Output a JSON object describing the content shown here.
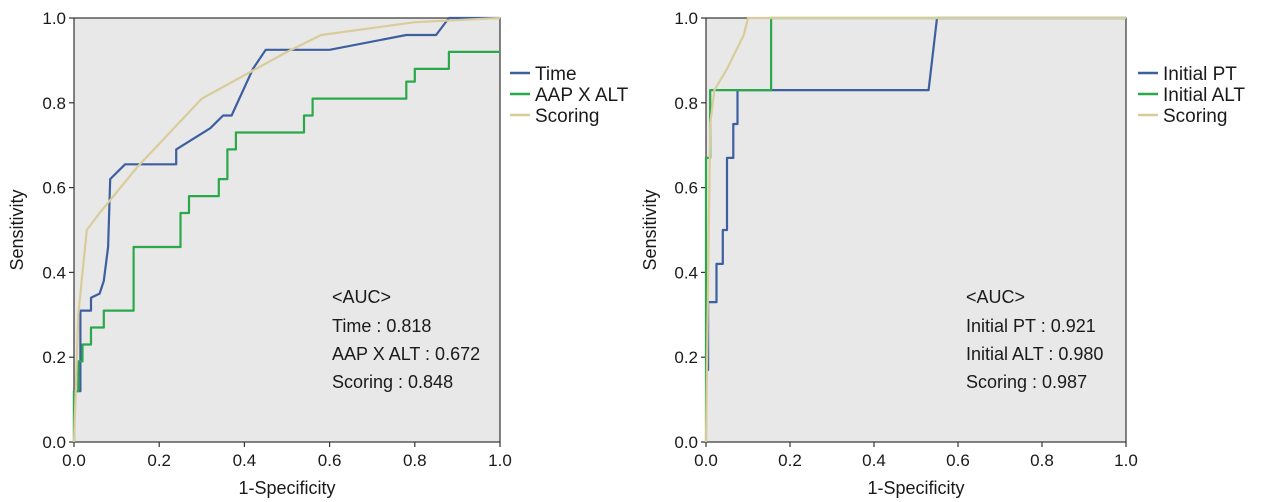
{
  "chart_data": [
    {
      "type": "line",
      "title": "",
      "xlabel": "1-Specificity",
      "ylabel": "Sensitivity",
      "xlim": [
        0,
        1
      ],
      "ylim": [
        0,
        1
      ],
      "xticks": [
        "0.0",
        "0.2",
        "0.4",
        "0.6",
        "0.8",
        "1.0"
      ],
      "yticks": [
        "0.0",
        "0.2",
        "0.4",
        "0.6",
        "0.8",
        "1.0"
      ],
      "grid": false,
      "legend_position": "right-top",
      "series": [
        {
          "name": "Time",
          "color": "#3d5fa0",
          "x": [
            0,
            0,
            0.015,
            0.015,
            0.04,
            0.04,
            0.06,
            0.07,
            0.08,
            0.085,
            0.12,
            0.24,
            0.24,
            0.32,
            0.35,
            0.37,
            0.42,
            0.45,
            0.6,
            0.78,
            0.85,
            0.88,
            1.0
          ],
          "y": [
            0,
            0.12,
            0.12,
            0.31,
            0.31,
            0.34,
            0.35,
            0.38,
            0.46,
            0.62,
            0.655,
            0.655,
            0.69,
            0.74,
            0.77,
            0.77,
            0.88,
            0.925,
            0.925,
            0.96,
            0.96,
            1.0,
            1.0
          ]
        },
        {
          "name": "AAP X ALT",
          "color": "#2aa84a",
          "x": [
            0,
            0,
            0.01,
            0.01,
            0.02,
            0.02,
            0.04,
            0.04,
            0.07,
            0.07,
            0.14,
            0.14,
            0.25,
            0.25,
            0.27,
            0.27,
            0.34,
            0.34,
            0.36,
            0.36,
            0.38,
            0.38,
            0.54,
            0.54,
            0.56,
            0.56,
            0.78,
            0.78,
            0.8,
            0.8,
            0.88,
            0.88,
            0.94,
            0.94,
            1.0
          ],
          "y": [
            0,
            0.12,
            0.12,
            0.19,
            0.19,
            0.23,
            0.23,
            0.27,
            0.27,
            0.31,
            0.31,
            0.46,
            0.46,
            0.54,
            0.54,
            0.58,
            0.58,
            0.62,
            0.62,
            0.69,
            0.69,
            0.73,
            0.73,
            0.77,
            0.77,
            0.81,
            0.81,
            0.85,
            0.85,
            0.88,
            0.88,
            0.92,
            0.92,
            0.92,
            0.92
          ]
        },
        {
          "name": "Scoring",
          "color": "#d9cc9a",
          "x": [
            0,
            0.01,
            0.02,
            0.03,
            0.06,
            0.15,
            0.3,
            0.5,
            0.58,
            0.8,
            1.0
          ],
          "y": [
            0,
            0.3,
            0.4,
            0.5,
            0.54,
            0.65,
            0.81,
            0.92,
            0.96,
            0.99,
            1.0
          ]
        }
      ],
      "annotation": {
        "heading": "<AUC>",
        "lines": [
          "Time : 0.818",
          "AAP X ALT : 0.672",
          "Scoring : 0.848"
        ]
      }
    },
    {
      "type": "line",
      "title": "",
      "xlabel": "1-Specificity",
      "ylabel": "Sensitivity",
      "xlim": [
        0,
        1
      ],
      "ylim": [
        0,
        1
      ],
      "xticks": [
        "0.0",
        "0.2",
        "0.4",
        "0.6",
        "0.8",
        "1.0"
      ],
      "yticks": [
        "0.0",
        "0.2",
        "0.4",
        "0.6",
        "0.8",
        "1.0"
      ],
      "grid": false,
      "legend_position": "right-top",
      "series": [
        {
          "name": "Initial PT",
          "color": "#3d5fa0",
          "x": [
            0,
            0.005,
            0.005,
            0.025,
            0.025,
            0.04,
            0.04,
            0.05,
            0.05,
            0.065,
            0.065,
            0.075,
            0.075,
            0.53,
            0.55,
            0.55,
            1.0
          ],
          "y": [
            0.17,
            0.17,
            0.33,
            0.33,
            0.42,
            0.42,
            0.5,
            0.5,
            0.67,
            0.67,
            0.75,
            0.75,
            0.83,
            0.83,
            1.0,
            1.0,
            1.0
          ]
        },
        {
          "name": "Initial ALT",
          "color": "#2aa84a",
          "x": [
            0,
            0,
            0.01,
            0.01,
            0.155,
            0.155,
            1.0
          ],
          "y": [
            0,
            0.67,
            0.67,
            0.83,
            0.83,
            1.0,
            1.0
          ]
        },
        {
          "name": "Scoring",
          "color": "#d9cc9a",
          "x": [
            0,
            0.01,
            0.02,
            0.05,
            0.09,
            0.1,
            1.0
          ],
          "y": [
            0,
            0.75,
            0.83,
            0.88,
            0.96,
            1.0,
            1.0
          ]
        }
      ],
      "annotation": {
        "heading": "<AUC>",
        "lines": [
          "Initial PT : 0.921",
          "Initial ALT : 0.980",
          "Scoring : 0.987"
        ]
      }
    }
  ]
}
